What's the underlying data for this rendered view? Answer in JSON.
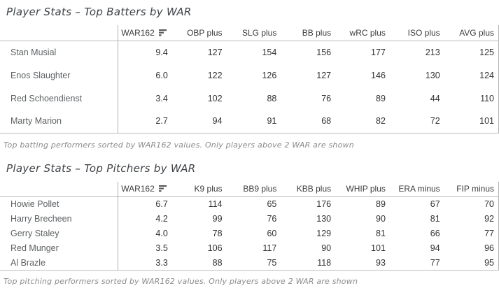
{
  "theme": {
    "background": "#ffffff",
    "title_text": "#3f4347",
    "header_text": "#3c3c3c",
    "row_name_text": "#5d6163",
    "value_text": "#323232",
    "caption_text": "#8b8b8b",
    "gridline": "#bdbdbd",
    "divider": "#b0b0b0",
    "sort_icon": "#595959"
  },
  "tables": [
    {
      "title": "Player Stats – Top Batters by WAR",
      "sort": {
        "column": "WAR162",
        "direction": "descending",
        "icon": "sort-descending-icon"
      },
      "columns": [
        "WAR162",
        "OBP plus",
        "SLG plus",
        "BB plus",
        "wRC plus",
        "ISO plus",
        "AVG plus"
      ],
      "rows": [
        {
          "name": "Stan Musial",
          "values": [
            "9.4",
            "127",
            "154",
            "156",
            "177",
            "213",
            "125"
          ]
        },
        {
          "name": "Enos Slaughter",
          "values": [
            "6.0",
            "122",
            "126",
            "127",
            "146",
            "130",
            "124"
          ]
        },
        {
          "name": "Red Schoendienst",
          "values": [
            "3.4",
            "102",
            "88",
            "76",
            "89",
            "44",
            "110"
          ]
        },
        {
          "name": "Marty Marion",
          "values": [
            "2.7",
            "94",
            "91",
            "68",
            "82",
            "72",
            "101"
          ]
        }
      ],
      "caption": "Top batting performers sorted by WAR162 values. Only players above 2 WAR are shown"
    },
    {
      "title": "Player Stats – Top Pitchers by WAR",
      "sort": {
        "column": "WAR162",
        "direction": "descending",
        "icon": "sort-descending-icon"
      },
      "columns": [
        "WAR162",
        "K9 plus",
        "BB9 plus",
        "KBB plus",
        "WHIP plus",
        "ERA minus",
        "FIP minus"
      ],
      "rows": [
        {
          "name": "Howie Pollet",
          "values": [
            "6.7",
            "114",
            "65",
            "176",
            "89",
            "67",
            "70"
          ]
        },
        {
          "name": "Harry Brecheen",
          "values": [
            "4.2",
            "99",
            "76",
            "130",
            "90",
            "81",
            "92"
          ]
        },
        {
          "name": "Gerry Staley",
          "values": [
            "4.0",
            "78",
            "60",
            "129",
            "81",
            "66",
            "77"
          ]
        },
        {
          "name": "Red Munger",
          "values": [
            "3.5",
            "106",
            "117",
            "90",
            "101",
            "94",
            "96"
          ]
        },
        {
          "name": "Al Brazle",
          "values": [
            "3.3",
            "88",
            "75",
            "118",
            "93",
            "77",
            "95"
          ]
        }
      ],
      "caption": "Top pitching performers sorted by WAR162 values. Only players above 2 WAR are shown"
    }
  ]
}
